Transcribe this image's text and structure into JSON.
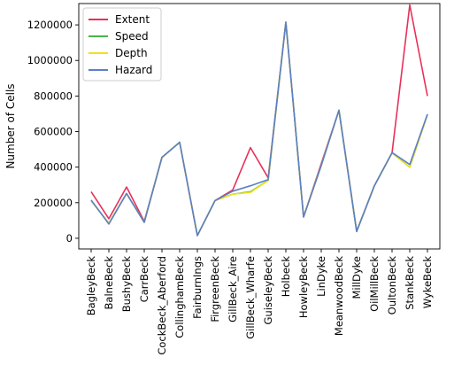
{
  "chart_data": {
    "type": "line",
    "title": "",
    "xlabel": "",
    "ylabel": "Number of Cells",
    "ylim": [
      -60000,
      1320000
    ],
    "yticks": [
      0,
      200000,
      400000,
      600000,
      800000,
      1000000,
      1200000
    ],
    "ytick_labels": [
      "0",
      "200000",
      "400000",
      "600000",
      "800000",
      "1000000",
      "1200000"
    ],
    "grid": false,
    "legend_position": "top-left",
    "categories": [
      "BagleyBeck",
      "BalneBeck",
      "BushyBeck",
      "CarrBeck",
      "CockBeck_Aberford",
      "CollinghamBeck",
      "FairburnIngs",
      "FirgreenBeck",
      "GillBeck_Aire",
      "GillBeck_Wharfe",
      "GuiseleyBeck",
      "Holbeck",
      "HowleyBeck",
      "LinDyke",
      "MeanwoodBeck",
      "MillDyke",
      "OilMillBeck",
      "OultonBeck",
      "StankBeck",
      "WykeBeck"
    ],
    "series": [
      {
        "name": "Extent",
        "color": "#e8305a",
        "values": [
          262000,
          110000,
          288000,
          95000,
          455000,
          540000,
          15000,
          212000,
          272000,
          510000,
          340000,
          1215000,
          120000,
          420000,
          720000,
          40000,
          295000,
          480000,
          1312000,
          800000
        ]
      },
      {
        "name": "Speed",
        "color": "#4cb34c",
        "values": [
          210000,
          85000,
          252000,
          90000,
          455000,
          540000,
          15000,
          212000,
          248000,
          262000,
          325000,
          1215000,
          120000,
          410000,
          720000,
          38000,
          295000,
          480000,
          400000,
          695000
        ]
      },
      {
        "name": "Depth",
        "color": "#f2e01a",
        "values": [
          210000,
          85000,
          252000,
          90000,
          455000,
          540000,
          15000,
          212000,
          248000,
          258000,
          325000,
          1215000,
          120000,
          410000,
          720000,
          38000,
          295000,
          480000,
          400000,
          695000
        ]
      },
      {
        "name": "Hazard",
        "color": "#5b7fc8",
        "values": [
          215000,
          80000,
          252000,
          90000,
          455000,
          540000,
          15000,
          212000,
          265000,
          295000,
          330000,
          1215000,
          120000,
          410000,
          720000,
          38000,
          295000,
          482000,
          415000,
          698000
        ]
      }
    ]
  }
}
